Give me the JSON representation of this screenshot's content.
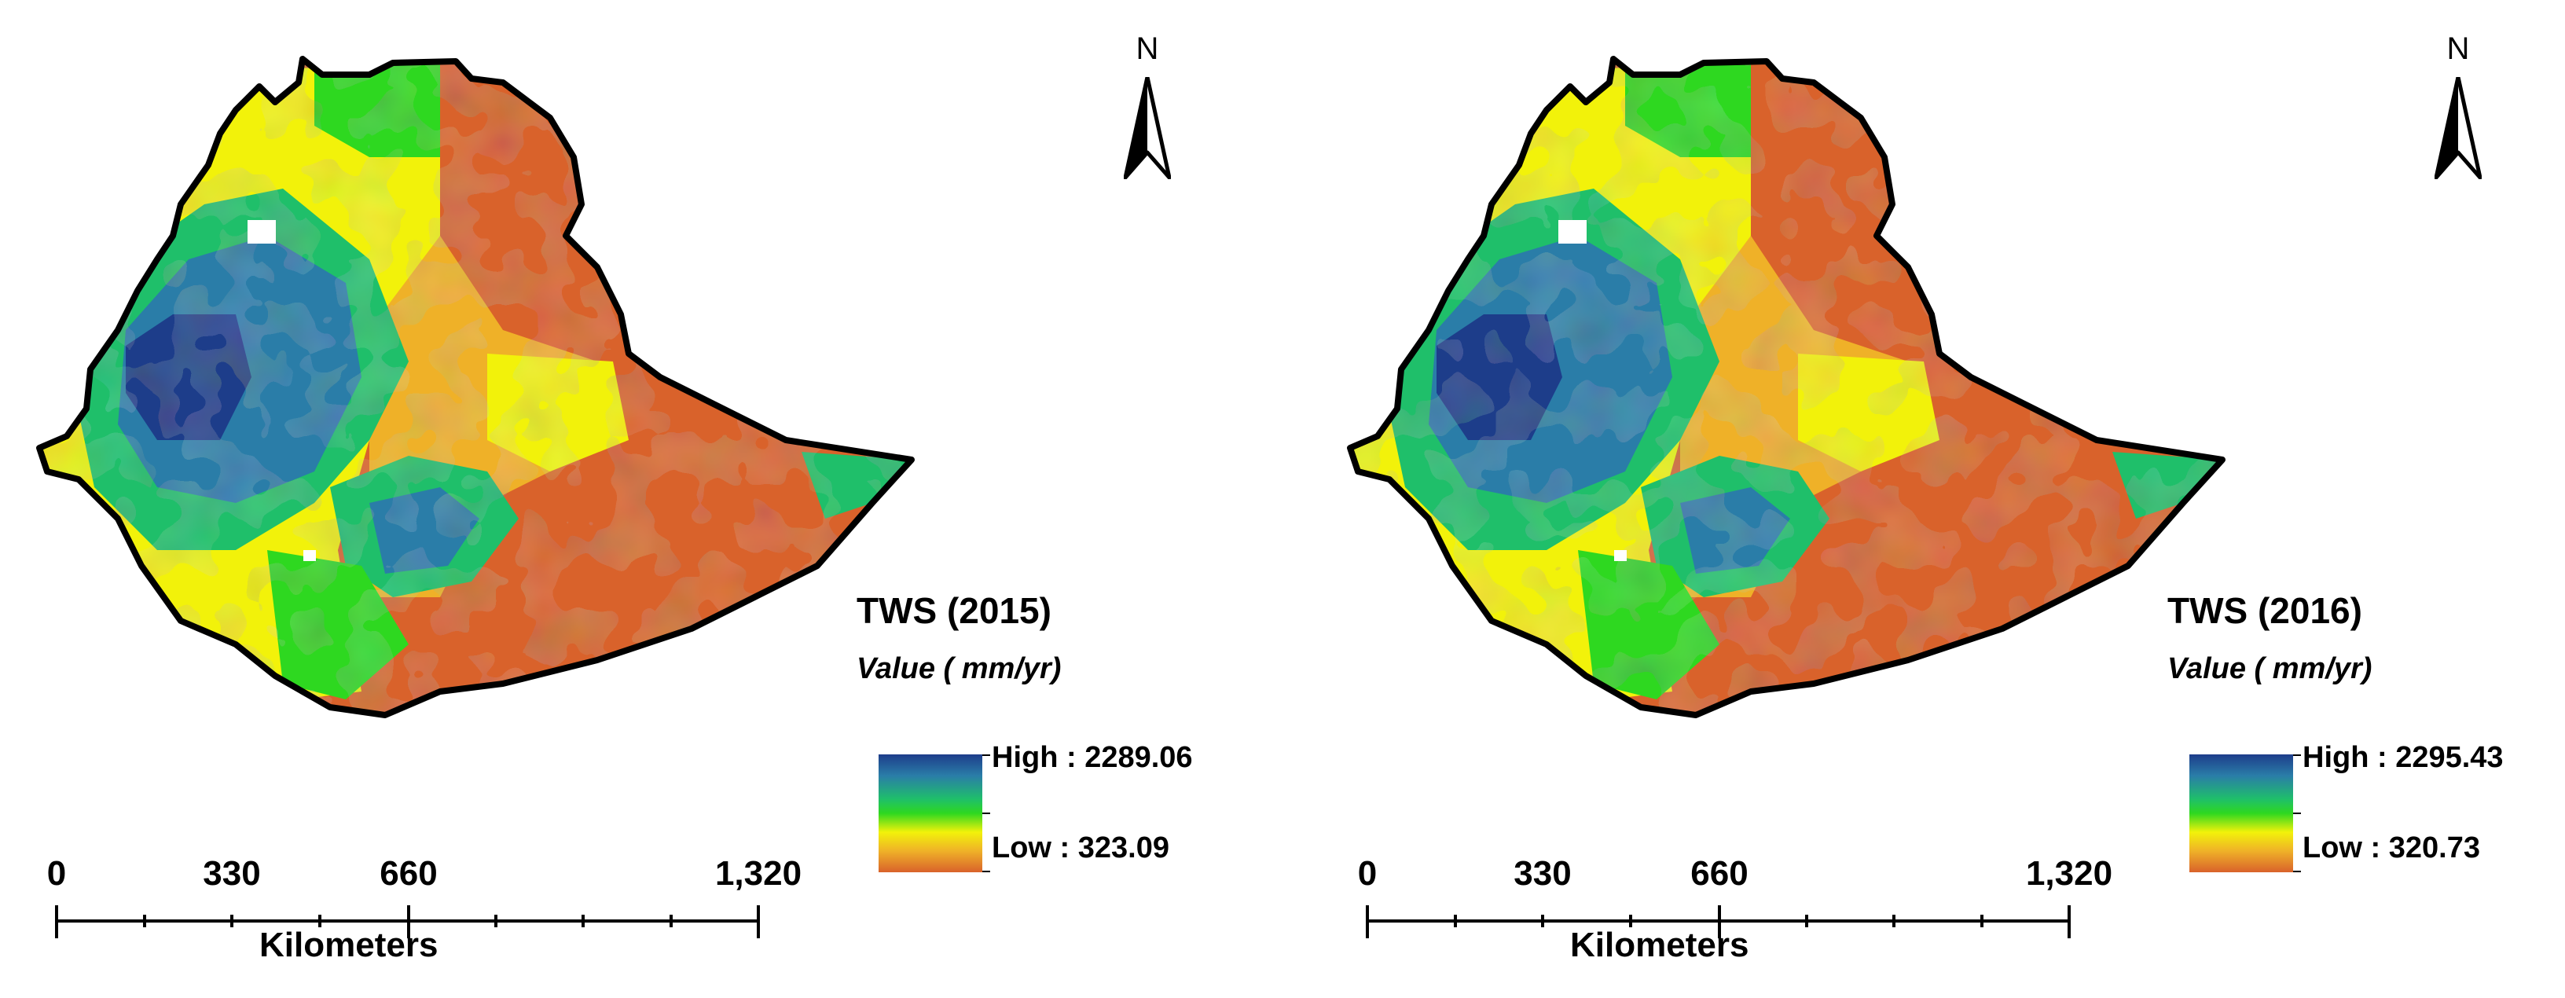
{
  "maps": [
    {
      "title": "TWS (2015)",
      "value_label": "Value ( mm/yr)",
      "high_label": "High : 2289.06",
      "low_label": "Low : 323.09",
      "north_label": "N",
      "scale_ticks": [
        "0",
        "330",
        "660",
        "1,320"
      ],
      "scale_unit": "Kilometers"
    },
    {
      "title": "TWS (2016)",
      "value_label": "Value ( mm/yr)",
      "high_label": "High : 2295.43",
      "low_label": "Low : 320.73",
      "north_label": "N",
      "scale_ticks": [
        "0",
        "330",
        "660",
        "1,320"
      ],
      "scale_unit": "Kilometers"
    }
  ],
  "colors": {
    "high": "#1d3d8a",
    "mid_high": "#2a7da8",
    "green": "#1fbf6a",
    "bright_green": "#2ed820",
    "yellow": "#f2f20a",
    "orange": "#efb128",
    "low": "#d9622b",
    "outline": "#000000"
  }
}
